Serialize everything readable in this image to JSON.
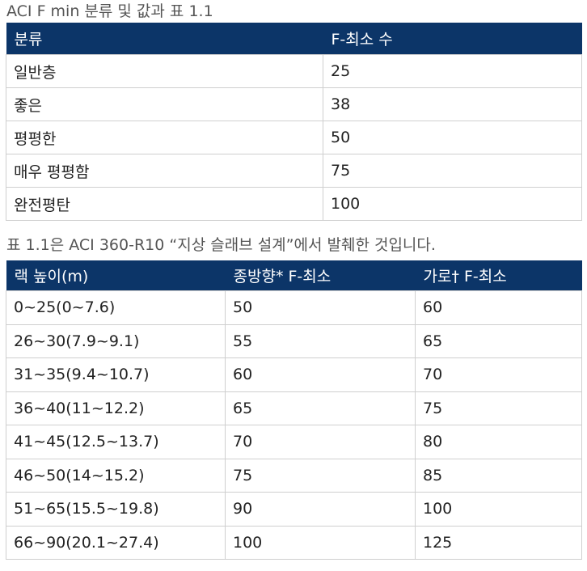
{
  "table1": {
    "caption": "ACI F min 분류 및 값과 표 1.1",
    "headers": [
      "분류",
      "F-최소 수"
    ],
    "rows": [
      [
        "일반층",
        "25"
      ],
      [
        "좋은",
        "38"
      ],
      [
        "평평한",
        "50"
      ],
      [
        "매우 평평함",
        "75"
      ],
      [
        "완전평탄",
        "100"
      ]
    ]
  },
  "table2": {
    "caption": "표 1.1은 ACI 360-R10 “지상 슬래브 설계”에서 발췌한 것입니다.",
    "headers": [
      "랙 높이(m)",
      "종방향* F-최소",
      "가로† F-최소"
    ],
    "rows": [
      [
        "0~25(0~7.6)",
        "50",
        "60"
      ],
      [
        "26~30(7.9~9.1)",
        "55",
        "65"
      ],
      [
        "31~35(9.4~10.7)",
        "60",
        "70"
      ],
      [
        "36~40(11~12.2)",
        "65",
        "75"
      ],
      [
        "41~45(12.5~13.7)",
        "70",
        "80"
      ],
      [
        "46~50(14~15.2)",
        "75",
        "85"
      ],
      [
        "51~65(15.5~19.8)",
        "90",
        "100"
      ],
      [
        "66~90(20.1~27.4)",
        "100",
        "125"
      ]
    ]
  }
}
